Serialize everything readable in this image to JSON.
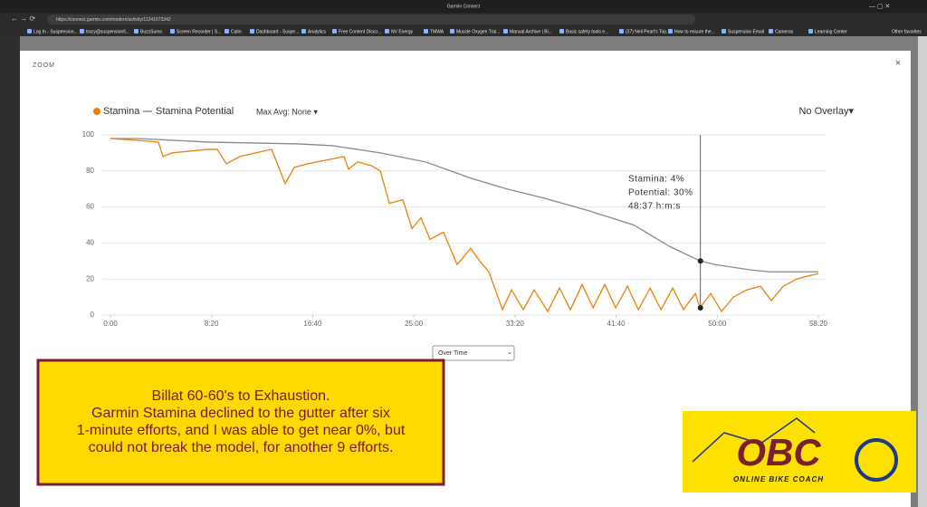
{
  "browser": {
    "tab_title": "Garmin Connect",
    "url": "https://connect.garmin.com/modern/activity/11241573342",
    "bookmarks": [
      "Log In - Suspension...",
      "tracy@suspensionfi...",
      "BuzzSumo",
      "Screen Recorder | S...",
      "Calm",
      "Dashboard - Suspe...",
      "Analytics",
      "Free Content Disco...",
      "NV Energy",
      "TMWA",
      "Muscle Oxygen Trai...",
      "Manual Archive | Bi...",
      "Basic safety tools e...",
      "(37) Neil Peart's Top...",
      "How to ensure the...",
      "Suspension Email",
      "Cameras",
      "Learning Center"
    ],
    "other_bookmarks": "Other favorites"
  },
  "modal": {
    "title": "ZOOM",
    "close": "×",
    "max_avg": "Max Avg: None ▾",
    "overlay": "No Overlay▾",
    "dropdown": "Over Time"
  },
  "chart_data": {
    "type": "line",
    "series": [
      {
        "name": "Stamina",
        "color": "#e8820c",
        "x": [
          0,
          134,
          237,
          260,
          304,
          483,
          528,
          573,
          640,
          797,
          864,
          909,
          976,
          1155,
          1177,
          1222,
          1289,
          1334,
          1379,
          1446,
          1491,
          1535,
          1580,
          1647,
          1714,
          1781,
          1826,
          1871,
          1916,
          1938,
          1983,
          2041,
          2095,
          2162,
          2220,
          2274,
          2332,
          2386,
          2444,
          2498,
          2556,
          2610,
          2668,
          2722,
          2780,
          2833,
          2892,
          2914,
          2968,
          3021,
          3080,
          3147,
          3214,
          3268,
          3326,
          3393,
          3460,
          3500
        ],
        "values": [
          98,
          97,
          96,
          88,
          90,
          92,
          92,
          84,
          88,
          92,
          73,
          82,
          84,
          88,
          81,
          85,
          83,
          80,
          62,
          64,
          48,
          54,
          42,
          46,
          28,
          37,
          30,
          24,
          10,
          3,
          14,
          3,
          14,
          2,
          15,
          3,
          17,
          4,
          17,
          4,
          16,
          3,
          15,
          3,
          15,
          3,
          12,
          4,
          12,
          2,
          10,
          14,
          16,
          8,
          16,
          20,
          22,
          23
        ]
      },
      {
        "name": "Stamina Potential",
        "color": "#8a8a8a",
        "x": [
          0,
          134,
          483,
          930,
          1100,
          1334,
          1558,
          1781,
          1960,
          2140,
          2363,
          2587,
          2766,
          2917,
          2990,
          3169,
          3258,
          3500
        ],
        "values": [
          98,
          98,
          96,
          95,
          94,
          90,
          85,
          76,
          70,
          65,
          58,
          50,
          38,
          30,
          28,
          25,
          24,
          24
        ]
      }
    ],
    "xlim": [
      0,
      3500
    ],
    "xticks": [
      {
        "value": 0,
        "label": "0:00"
      },
      {
        "value": 500,
        "label": "8:20"
      },
      {
        "value": 1000,
        "label": "16:40"
      },
      {
        "value": 1500,
        "label": "25:00"
      },
      {
        "value": 2000,
        "label": "33:20"
      },
      {
        "value": 2500,
        "label": "41:40"
      },
      {
        "value": 3000,
        "label": "50:00"
      },
      {
        "value": 3500,
        "label": "58:20"
      }
    ],
    "ylim": [
      0,
      100
    ],
    "yticks": [
      0,
      20,
      40,
      60,
      80,
      100
    ],
    "grid": true,
    "tooltip": {
      "stamina": {
        "value": 4,
        "label": "Stamina: 4%"
      },
      "potential": {
        "value": 30,
        "label": "Potential: 30%"
      },
      "time": {
        "value": 2917,
        "label": "48:37 h:m:s"
      }
    }
  },
  "annotation": {
    "lines": [
      "Billat 60-60's to Exhaustion.",
      "Garmin Stamina declined to the gutter after six",
      "1-minute efforts, and I was able to get near 0%, but",
      "could not break the model, for another 9 efforts."
    ]
  },
  "logo": {
    "text": "OBC",
    "subtitle": "ONLINE BIKE COACH"
  }
}
